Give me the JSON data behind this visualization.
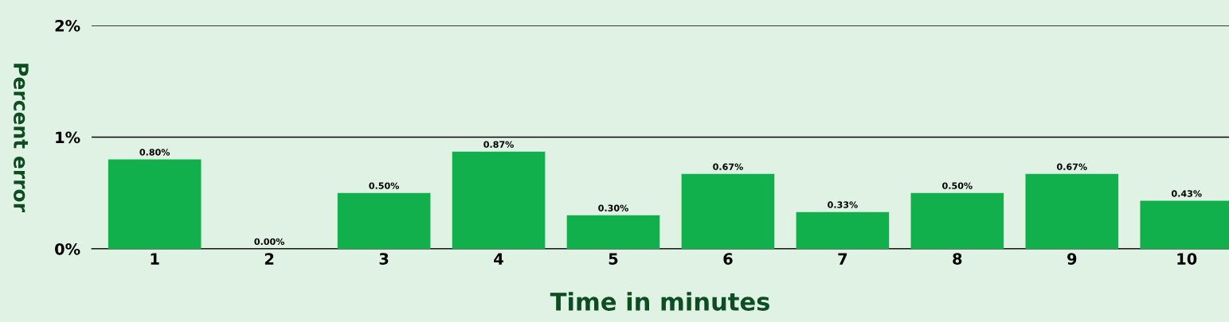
{
  "chart_data": {
    "type": "bar",
    "xlabel": "Time in minutes",
    "ylabel": "Percent error",
    "categories": [
      "1",
      "2",
      "3",
      "4",
      "5",
      "6",
      "7",
      "8",
      "9",
      "10"
    ],
    "values": [
      0.8,
      0.0,
      0.5,
      0.87,
      0.3,
      0.67,
      0.33,
      0.5,
      0.67,
      0.43
    ],
    "value_labels": [
      "0.80%",
      "0.00%",
      "0.50%",
      "0.87%",
      "0.30%",
      "0.67%",
      "0.33%",
      "0.50%",
      "0.67%",
      "0.43%"
    ],
    "color": "#12b04c",
    "ylim": [
      0,
      2
    ],
    "yticks": [
      {
        "value": 0,
        "label": "0%"
      },
      {
        "value": 1,
        "label": "1%"
      },
      {
        "value": 2,
        "label": "2%"
      }
    ],
    "grid": "y",
    "legend": false
  }
}
